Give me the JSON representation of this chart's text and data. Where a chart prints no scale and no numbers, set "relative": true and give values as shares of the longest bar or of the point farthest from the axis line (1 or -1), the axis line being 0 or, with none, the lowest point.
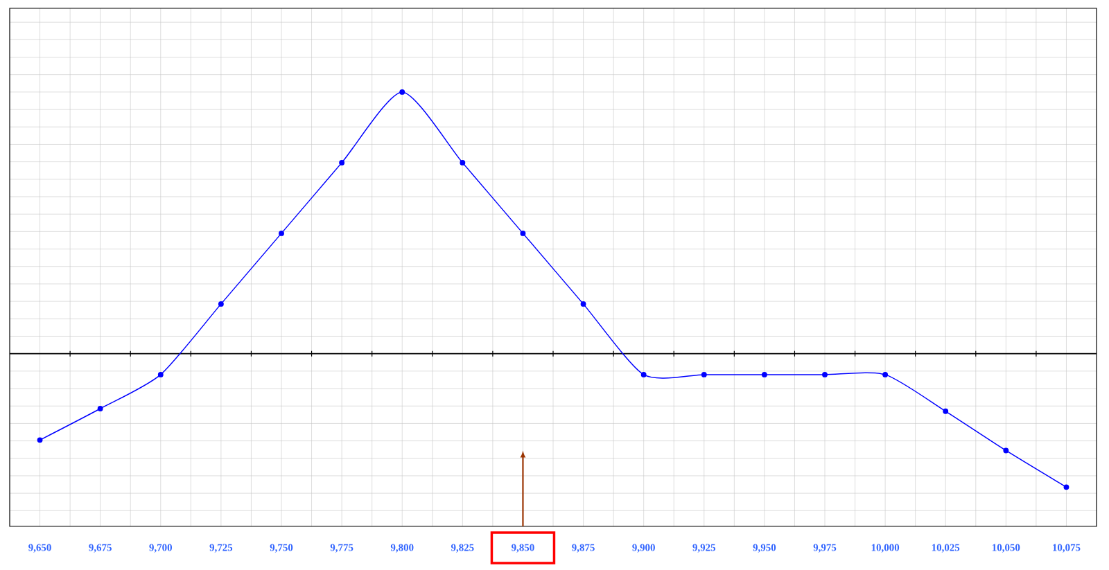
{
  "chart_data": {
    "type": "line",
    "relative": true,
    "grid": true,
    "marker": "circle",
    "line_style": "solid",
    "x": [
      9650,
      9675,
      9700,
      9725,
      9750,
      9775,
      9800,
      9825,
      9850,
      9875,
      9900,
      9925,
      9950,
      9975,
      10000,
      10025,
      10050,
      10075
    ],
    "series": [
      {
        "color": "#0000ff",
        "values": [
          -0.33,
          -0.21,
          -0.08,
          0.19,
          0.46,
          0.73,
          1,
          0.73,
          0.46,
          0.19,
          -0.08,
          -0.08,
          -0.08,
          -0.08,
          -0.08,
          -0.22,
          -0.37,
          -0.51
        ]
      }
    ],
    "xlim": [
      9637.5,
      10087.5
    ],
    "xticks": [
      {
        "value": 9650,
        "label": "9,650"
      },
      {
        "value": 9675,
        "label": "9,675"
      },
      {
        "value": 9700,
        "label": "9,700"
      },
      {
        "value": 9725,
        "label": "9,725"
      },
      {
        "value": 9750,
        "label": "9,750"
      },
      {
        "value": 9775,
        "label": "9,775"
      },
      {
        "value": 9800,
        "label": "9,800"
      },
      {
        "value": 9825,
        "label": "9,825"
      },
      {
        "value": 9850,
        "label": "9,850"
      },
      {
        "value": 9875,
        "label": "9,875"
      },
      {
        "value": 9900,
        "label": "9,900"
      },
      {
        "value": 9925,
        "label": "9,925"
      },
      {
        "value": 9950,
        "label": "9,950"
      },
      {
        "value": 9975,
        "label": "9,975"
      },
      {
        "value": 10000,
        "label": "10,000"
      },
      {
        "value": 10025,
        "label": "10,025"
      },
      {
        "value": 10050,
        "label": "10,050"
      },
      {
        "value": 10075,
        "label": "10,075"
      }
    ]
  }
}
